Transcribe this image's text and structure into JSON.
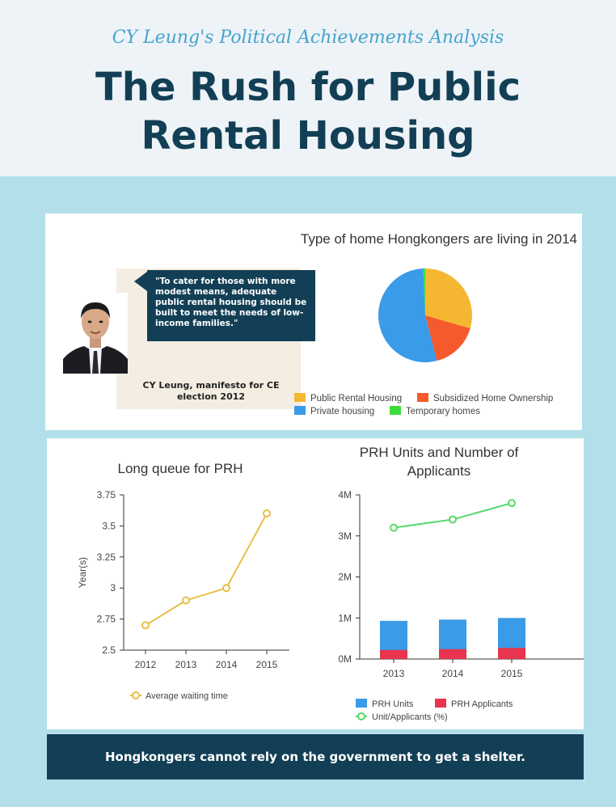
{
  "header": {
    "subtitle": "CY Leung's Political Achievements Analysis",
    "title": "The Rush for Public Rental Housing"
  },
  "quote": {
    "text": "\"To cater for those with more modest means, adequate public rental housing should be built to meet the needs of low-income families.\"",
    "citation": "CY Leung, manifesto for CE election 2012"
  },
  "banner": {
    "text": "Hongkongers cannot rely on the government to get a shelter."
  },
  "colors": {
    "header_bg": "#eef3f7",
    "page_bg": "#b3dfeb",
    "dark_navy": "#123f55",
    "accent_blue": "#45a4cd"
  },
  "chart_data": [
    {
      "type": "pie",
      "title": "Type of home Hongkongers are living in 2014",
      "labels": [
        "Public Rental Housing",
        "Subsidized Home Ownership",
        "Private housing",
        "Temporary homes"
      ],
      "values": [
        29.5,
        16.5,
        53.3,
        0.7
      ],
      "colors": [
        "#f5b731",
        "#f55a2c",
        "#3a9be8",
        "#3cdc3c"
      ],
      "legend_position": "bottom"
    },
    {
      "type": "line",
      "title": "Long queue for PRH",
      "categories": [
        "2012",
        "2013",
        "2014",
        "2015"
      ],
      "series": [
        {
          "name": "Average waiting time",
          "values": [
            2.7,
            2.9,
            3.0,
            3.6
          ],
          "color": "#e7bf49"
        }
      ],
      "ylabel": "Year(s)",
      "ylim": [
        2.5,
        3.75
      ],
      "yticks": [
        2.5,
        2.75,
        3,
        3.25,
        3.5,
        3.75
      ],
      "ytick_labels": [
        "2.5",
        "2.75",
        "3",
        "3.25",
        "3.5",
        "3.75"
      ],
      "legend_position": "bottom"
    },
    {
      "type": "bar",
      "title": "PRH Units and Number of Applicants",
      "categories": [
        "2013",
        "2014",
        "2015"
      ],
      "series": [
        {
          "name": "PRH Units",
          "values": [
            930000,
            960000,
            1000000
          ],
          "color": "#3a9be8"
        },
        {
          "name": "PRH Applicants",
          "values": [
            220000,
            240000,
            270000
          ],
          "color": "#e8344e"
        },
        {
          "name": "Unit/Applicants (%)",
          "type": "line",
          "values": [
            3200000,
            3400000,
            3800000
          ],
          "color": "#55d96a"
        }
      ],
      "ylim": [
        0,
        4000000
      ],
      "yticks": [
        0,
        1000000,
        2000000,
        3000000,
        4000000
      ],
      "ytick_labels": [
        "0M",
        "1M",
        "2M",
        "3M",
        "4M"
      ],
      "legend_position": "bottom"
    }
  ]
}
